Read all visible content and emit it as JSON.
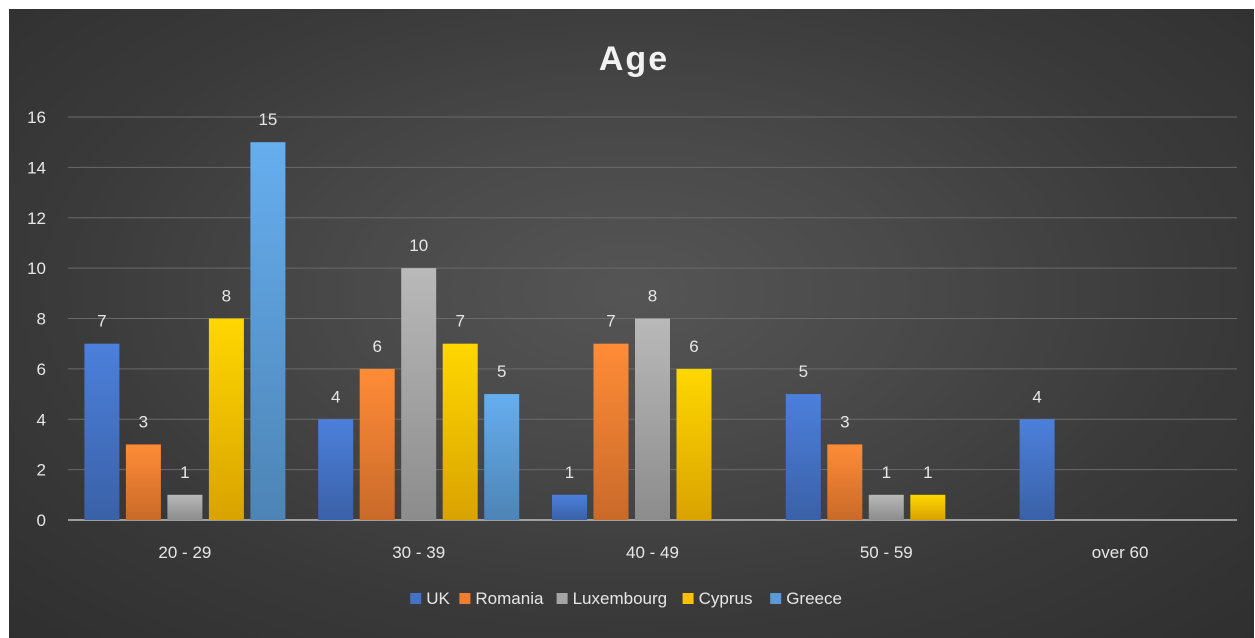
{
  "chart_data": {
    "type": "bar",
    "title": "Age",
    "xlabel": "",
    "ylabel": "",
    "categories": [
      "20 - 29",
      "30 - 39",
      "40 - 49",
      "50 - 59",
      "over 60"
    ],
    "ylim": [
      0,
      16
    ],
    "yticks": [
      0,
      2,
      4,
      6,
      8,
      10,
      12,
      14,
      16
    ],
    "grid": true,
    "legend_position": "bottom",
    "series": [
      {
        "name": "UK",
        "values": [
          7,
          4,
          1,
          5,
          4
        ],
        "color": "#4472c4"
      },
      {
        "name": "Romania",
        "values": [
          3,
          6,
          7,
          3,
          null
        ],
        "color": "#ed7d31"
      },
      {
        "name": "Luxembourg",
        "values": [
          1,
          10,
          8,
          1,
          null
        ],
        "color": "#a5a5a5"
      },
      {
        "name": "Cyprus",
        "values": [
          8,
          7,
          6,
          1,
          null
        ],
        "color": "#ffc000"
      },
      {
        "name": "Greece",
        "values": [
          15,
          5,
          null,
          null,
          null
        ],
        "color": "#5b9bd5"
      }
    ]
  }
}
